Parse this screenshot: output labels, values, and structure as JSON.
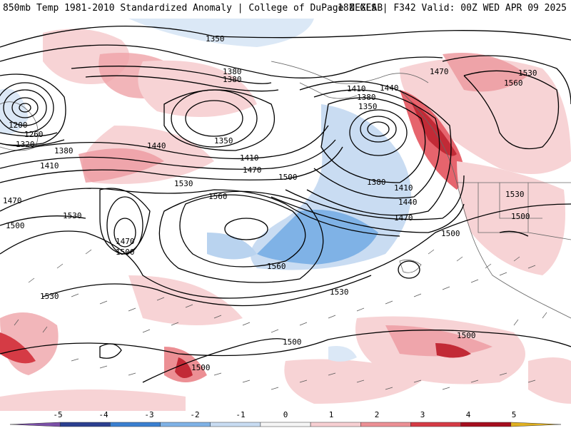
{
  "header": {
    "left_title": "850mb Temp 1981-2010 Standardized Anomaly | College of DuPage NEXLAB",
    "right_title": "18Z GFS | F342 Valid: 00Z WED APR 09 2025"
  },
  "colorbar": {
    "ticks": [
      "-5",
      "-4",
      "-3",
      "-2",
      "-1",
      "0",
      "1",
      "2",
      "3",
      "4",
      "5"
    ],
    "colors": [
      "#7b4fa8",
      "#2b3f8f",
      "#3a7fd0",
      "#7fb2e6",
      "#c8dcf2",
      "#f5f5f5",
      "#f7cfd2",
      "#ec8f94",
      "#d53b45",
      "#a50e1e",
      "#e0b020"
    ]
  },
  "contour_labels": [
    {
      "text": "1350"
    },
    {
      "text": "1380"
    },
    {
      "text": "1380"
    },
    {
      "text": "1470"
    },
    {
      "text": "1530"
    },
    {
      "text": "1560"
    },
    {
      "text": "1200"
    },
    {
      "text": "1260"
    },
    {
      "text": "1320"
    },
    {
      "text": "1380"
    },
    {
      "text": "1410"
    },
    {
      "text": "1440"
    },
    {
      "text": "1350"
    },
    {
      "text": "1410"
    },
    {
      "text": "1470"
    },
    {
      "text": "1500"
    },
    {
      "text": "1530"
    },
    {
      "text": "1560"
    },
    {
      "text": "1410"
    },
    {
      "text": "1440"
    },
    {
      "text": "1380"
    },
    {
      "text": "1350"
    },
    {
      "text": "1380"
    },
    {
      "text": "1410"
    },
    {
      "text": "1440"
    },
    {
      "text": "1470"
    },
    {
      "text": "1500"
    },
    {
      "text": "1470"
    },
    {
      "text": "1530"
    },
    {
      "text": "1500"
    },
    {
      "text": "1470"
    },
    {
      "text": "1500"
    },
    {
      "text": "1560"
    },
    {
      "text": "1530"
    },
    {
      "text": "1530"
    },
    {
      "text": "1530"
    },
    {
      "text": "1500"
    },
    {
      "text": "1500"
    },
    {
      "text": "1500"
    },
    {
      "text": "1500"
    }
  ]
}
